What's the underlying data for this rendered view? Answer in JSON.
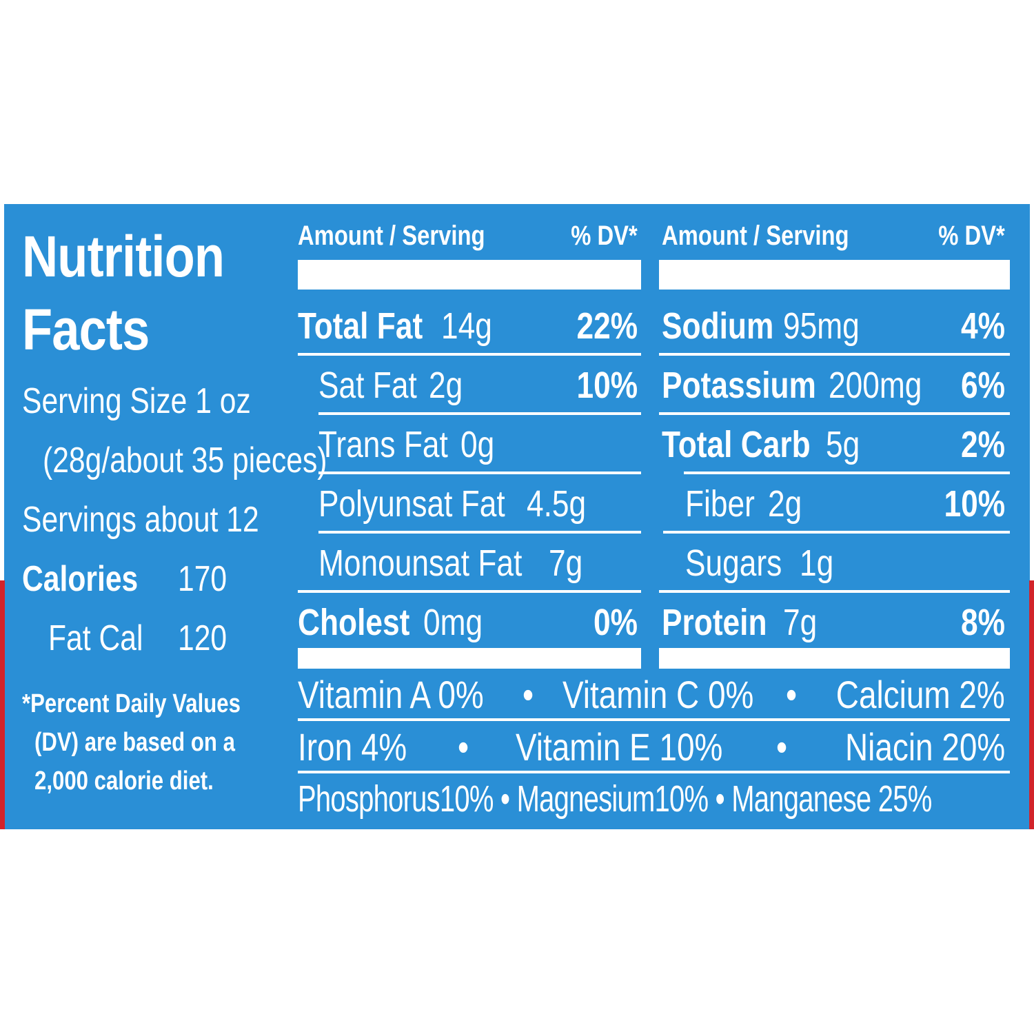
{
  "label": {
    "title_line1": "Nutrition",
    "title_line2": "Facts",
    "serving_size": "Serving Size 1 oz",
    "serving_detail": "(28g/about 35 pieces)",
    "servings": "Servings about 12",
    "calories_label": "Calories",
    "calories_value": "170",
    "fat_cal_label": "Fat Cal",
    "fat_cal_value": "120",
    "footnote": [
      "*Percent Daily Values",
      "(DV) are based on a",
      "2,000 calorie diet."
    ]
  },
  "left_column": {
    "header_amount": "Amount / Serving",
    "header_dv": "% DV*",
    "rows": [
      {
        "name": "Total Fat",
        "amount": "14g",
        "dv": "22%"
      },
      {
        "name": "Sat Fat",
        "amount": "2g",
        "dv": "10%"
      },
      {
        "name": "Trans Fat",
        "amount": "0g",
        "dv": ""
      },
      {
        "name": "Polyunsat Fat",
        "amount": "4.5g",
        "dv": ""
      },
      {
        "name": "Monounsat Fat",
        "amount": "7g",
        "dv": ""
      },
      {
        "name": "Cholest",
        "amount": "0mg",
        "dv": "0%"
      }
    ]
  },
  "right_column": {
    "header_amount": "Amount / Serving",
    "header_dv": "% DV*",
    "rows": [
      {
        "name": "Sodium",
        "amount": "95mg",
        "dv": "4%"
      },
      {
        "name": "Potassium",
        "amount": "200mg",
        "dv": "6%"
      },
      {
        "name": "Total Carb",
        "amount": "5g",
        "dv": "2%"
      },
      {
        "name": "Fiber",
        "amount": "2g",
        "dv": "10%"
      },
      {
        "name": "Sugars",
        "amount": "1g",
        "dv": ""
      },
      {
        "name": "Protein",
        "amount": "7g",
        "dv": "8%"
      }
    ]
  },
  "vitamins": {
    "row1": [
      "Vitamin A 0%",
      "•",
      "Vitamin C 0%",
      "•",
      "Calcium 2%"
    ],
    "row2": [
      "Iron 4%",
      "•",
      "Vitamin E 10%",
      "•",
      "Niacin 20%"
    ],
    "row3": "Phosphorus10% • Magnesium10% • Manganese 25%"
  },
  "colors": {
    "panel": "#2a8fd6",
    "text": "#ffffff",
    "accent": "#d2232a"
  }
}
